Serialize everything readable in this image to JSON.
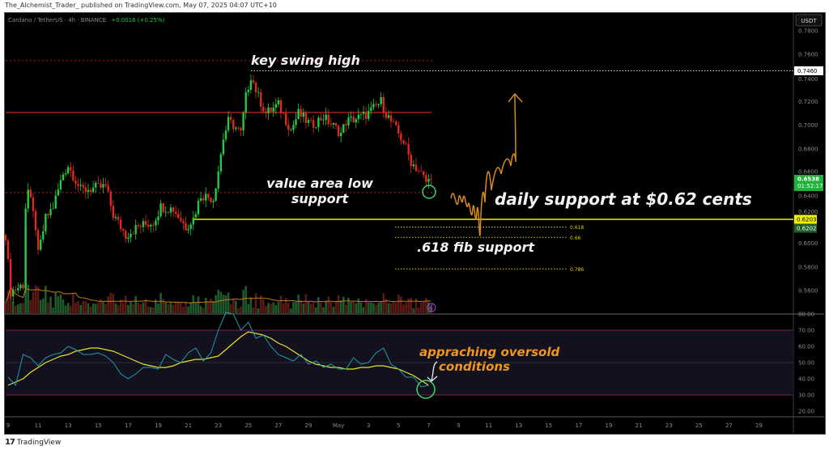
{
  "header": {
    "published": "The_Alchemist_Trader_ published on TradingView.com, May 07, 2025 04:07 UTC+10"
  },
  "symbol": {
    "title": "Cardano / TetherUS · 4h · BINANCE",
    "change": "+0.0016 (+0.25%)",
    "currency_button": "USDT"
  },
  "footer": {
    "logo_mark": "17",
    "brand": "TradingView"
  },
  "colors": {
    "up": "#26c941",
    "down": "#e0291e",
    "rsi": "#1e9bb0",
    "rsi_ma": "#e6e22c",
    "support": "#f0f000",
    "annotation_orange": "#f0961e",
    "circle": "#3ad66a"
  },
  "chart_data": {
    "type": "candlestick",
    "price_axis": {
      "ticks": [
        "0.7800",
        "0.7600",
        "0.7400",
        "0.7200",
        "0.7000",
        "0.6800",
        "0.6600",
        "0.6400",
        "0.6200",
        "0.6000",
        "0.5800",
        "0.5600"
      ],
      "ylim": [
        0.545,
        0.795
      ]
    },
    "time_axis": {
      "ticks": [
        "9",
        "11",
        "13",
        "15",
        "17",
        "19",
        "21",
        "23",
        "25",
        "27",
        "29",
        "May",
        "3",
        "5",
        "7",
        "9",
        "11",
        "13",
        "15",
        "17",
        "19",
        "21",
        "23",
        "25",
        "27",
        "29"
      ]
    },
    "price_path": [
      [
        "2025-04-08T20:00",
        0.607
      ],
      [
        "2025-04-09T04:00",
        0.559
      ],
      [
        "2025-04-10T00:00",
        0.565
      ],
      [
        "2025-04-10T04:00",
        0.631
      ],
      [
        "2025-04-10T08:00",
        0.645
      ],
      [
        "2025-04-10T20:00",
        0.614
      ],
      [
        "2025-04-11T00:00",
        0.59
      ],
      [
        "2025-04-11T12:00",
        0.621
      ],
      [
        "2025-04-12T00:00",
        0.631
      ],
      [
        "2025-04-12T16:00",
        0.659
      ],
      [
        "2025-04-13T00:00",
        0.666
      ],
      [
        "2025-04-13T20:00",
        0.645
      ],
      [
        "2025-04-15T12:00",
        0.648
      ],
      [
        "2025-04-16T00:00",
        0.624
      ],
      [
        "2025-04-16T20:00",
        0.607
      ],
      [
        "2025-04-17T16:00",
        0.614
      ],
      [
        "2025-04-18T16:00",
        0.618
      ],
      [
        "2025-04-19T04:00",
        0.631
      ],
      [
        "2025-04-20T00:00",
        0.629
      ],
      [
        "2025-04-20T20:00",
        0.614
      ],
      [
        "2025-04-21T08:00",
        0.621
      ],
      [
        "2025-04-21T20:00",
        0.641
      ],
      [
        "2025-04-22T16:00",
        0.638
      ],
      [
        "2025-04-23T00:00",
        0.662
      ],
      [
        "2025-04-23T08:00",
        0.689
      ],
      [
        "2025-04-23T16:00",
        0.703
      ],
      [
        "2025-04-24T00:00",
        0.7
      ],
      [
        "2025-04-24T12:00",
        0.693
      ],
      [
        "2025-04-24T20:00",
        0.724
      ],
      [
        "2025-04-25T04:00",
        0.742
      ],
      [
        "2025-04-25T16:00",
        0.724
      ],
      [
        "2025-04-26T04:00",
        0.71
      ],
      [
        "2025-04-27T00:00",
        0.717
      ],
      [
        "2025-04-27T20:00",
        0.696
      ],
      [
        "2025-04-28T08:00",
        0.71
      ],
      [
        "2025-04-29T04:00",
        0.7
      ],
      [
        "2025-04-30T00:00",
        0.707
      ],
      [
        "2025-05-01T04:00",
        0.693
      ],
      [
        "2025-05-01T12:00",
        0.703
      ],
      [
        "2025-05-02T12:00",
        0.707
      ],
      [
        "2025-05-03T00:00",
        0.71
      ],
      [
        "2025-05-03T20:00",
        0.72
      ],
      [
        "2025-05-04T04:00",
        0.71
      ],
      [
        "2025-05-04T20:00",
        0.696
      ],
      [
        "2025-05-05T08:00",
        0.686
      ],
      [
        "2025-05-05T20:00",
        0.669
      ],
      [
        "2025-05-06T12:00",
        0.659
      ],
      [
        "2025-05-06T20:00",
        0.652
      ],
      [
        "2025-05-07T04:00",
        0.6538
      ]
    ],
    "levels": {
      "swing_high": {
        "price": 0.746,
        "label": "0.7460"
      },
      "last": {
        "price": 0.6538,
        "label": "0.6538",
        "countdown": "01:52:17"
      },
      "daily_support": {
        "price": 0.6203,
        "label": "0.6203"
      },
      "support_close": {
        "label": "0.6202"
      },
      "resistance_red": 0.7107,
      "dotted_red_top": 0.7546,
      "value_area_low": 0.643
    },
    "fib_levels": [
      {
        "label": "0.618",
        "price": 0.6138
      },
      {
        "label": "0.66",
        "price": 0.605
      },
      {
        "label": "0.786",
        "price": 0.5783
      }
    ],
    "rsi": {
      "axis_ticks": [
        "80.00",
        "70.00",
        "60.00",
        "50.00",
        "40.00",
        "30.00",
        "20.00"
      ],
      "upper": 70,
      "lower": 30,
      "middle": 50,
      "start": "2025-04-09T00:00",
      "interval": "12h",
      "values": [
        41,
        36,
        55,
        53,
        48,
        53,
        55,
        56,
        60,
        58,
        55,
        55,
        56,
        54,
        50,
        43,
        40,
        43,
        47,
        47,
        46,
        55,
        52,
        50,
        56,
        59,
        51,
        56,
        70,
        81,
        80,
        70,
        75,
        65,
        67,
        60,
        55,
        53,
        51,
        55,
        49,
        51,
        47,
        49,
        46,
        46,
        53,
        49,
        50,
        56,
        59,
        49,
        46,
        41,
        41,
        35,
        36
      ],
      "ma_values": [
        36,
        38,
        40,
        44,
        47,
        50,
        52,
        54,
        55,
        57,
        58,
        59,
        59,
        58,
        57,
        55,
        53,
        51,
        49,
        48,
        47,
        47,
        48,
        50,
        51,
        52,
        52,
        53,
        54,
        58,
        62,
        66,
        69,
        68,
        67,
        65,
        62,
        60,
        57,
        54,
        51,
        49,
        48,
        47,
        47,
        46,
        46,
        47,
        47,
        48,
        48,
        47,
        46,
        44,
        42,
        39,
        36
      ]
    },
    "annotations": {
      "swing_high": "key swing high",
      "val_line1": "value area low",
      "val_line2": "support",
      "daily_support": "daily support at $0.62 cents",
      "fib_support": ".618 fib support",
      "oversold_line1": "appraching oversold",
      "oversold_line2": "conditions"
    }
  }
}
